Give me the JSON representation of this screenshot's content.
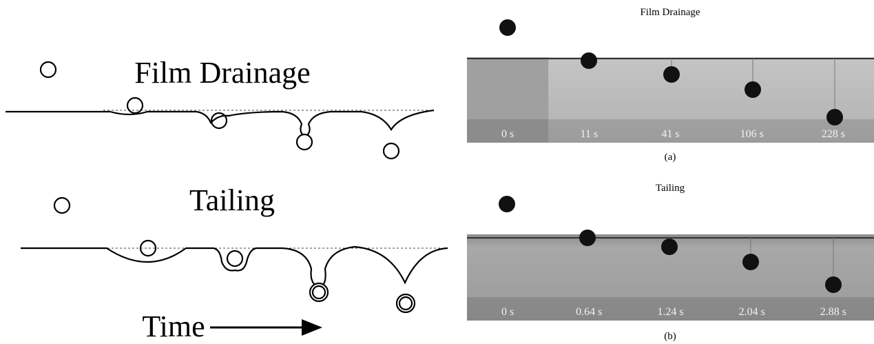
{
  "schematic": {
    "film_drainage_label": "Film Drainage",
    "tailing_label": "Tailing",
    "time_label": "Time"
  },
  "panels": [
    {
      "title": "Film Drainage",
      "times": [
        "0 s",
        "11 s",
        "41 s",
        "106 s",
        "228 s"
      ],
      "caption": "(a)"
    },
    {
      "title": "Tailing",
      "times": [
        "0 s",
        "0.64 s",
        "1.24 s",
        "2.04 s",
        "2.88 s"
      ],
      "caption": "(b)"
    }
  ]
}
